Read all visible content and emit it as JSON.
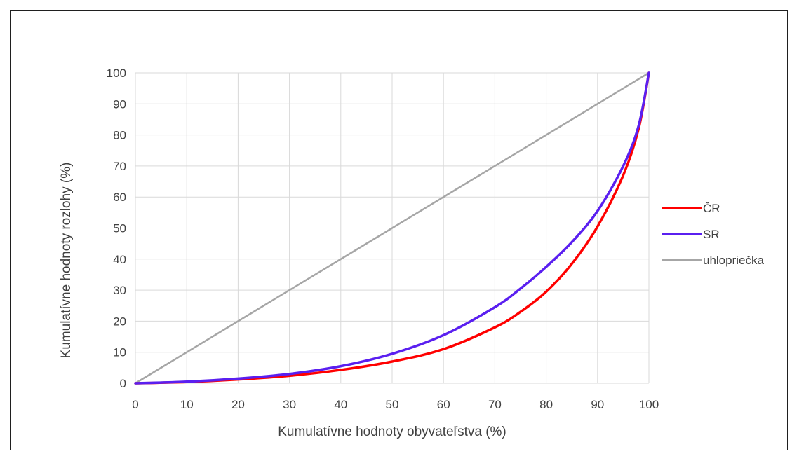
{
  "chart_data": {
    "type": "line",
    "xlabel": "Kumulatívne hodnoty obyvateľstva (%)",
    "ylabel": "Kumulatívne hodnoty rozlohy (%)",
    "xlim": [
      0,
      100
    ],
    "ylim": [
      0,
      100
    ],
    "xticks": [
      0,
      10,
      20,
      30,
      40,
      50,
      60,
      70,
      80,
      90,
      100
    ],
    "yticks": [
      0,
      10,
      20,
      30,
      40,
      50,
      60,
      70,
      80,
      90,
      100
    ],
    "grid": true,
    "legend_position": "right",
    "series": [
      {
        "name": "ČR",
        "color": "#ff0000",
        "x": [
          0,
          10,
          20,
          30,
          40,
          50,
          60,
          70,
          75,
          80,
          85,
          90,
          95,
          98,
          100
        ],
        "y": [
          0,
          0.4,
          1.2,
          2.4,
          4.3,
          7.0,
          11.0,
          18.0,
          23.0,
          29.5,
          38.5,
          50.5,
          67.0,
          82.0,
          100
        ]
      },
      {
        "name": "SR",
        "color": "#5a1ff0",
        "x": [
          0,
          10,
          20,
          30,
          40,
          50,
          60,
          70,
          75,
          80,
          85,
          90,
          95,
          98,
          100
        ],
        "y": [
          0,
          0.5,
          1.5,
          3.0,
          5.5,
          9.5,
          15.5,
          24.5,
          30.5,
          37.5,
          45.5,
          55.5,
          70.0,
          83.0,
          100
        ]
      },
      {
        "name": "uhlopriečka",
        "color": "#a6a6a6",
        "x": [
          0,
          100
        ],
        "y": [
          0,
          100
        ]
      }
    ]
  }
}
